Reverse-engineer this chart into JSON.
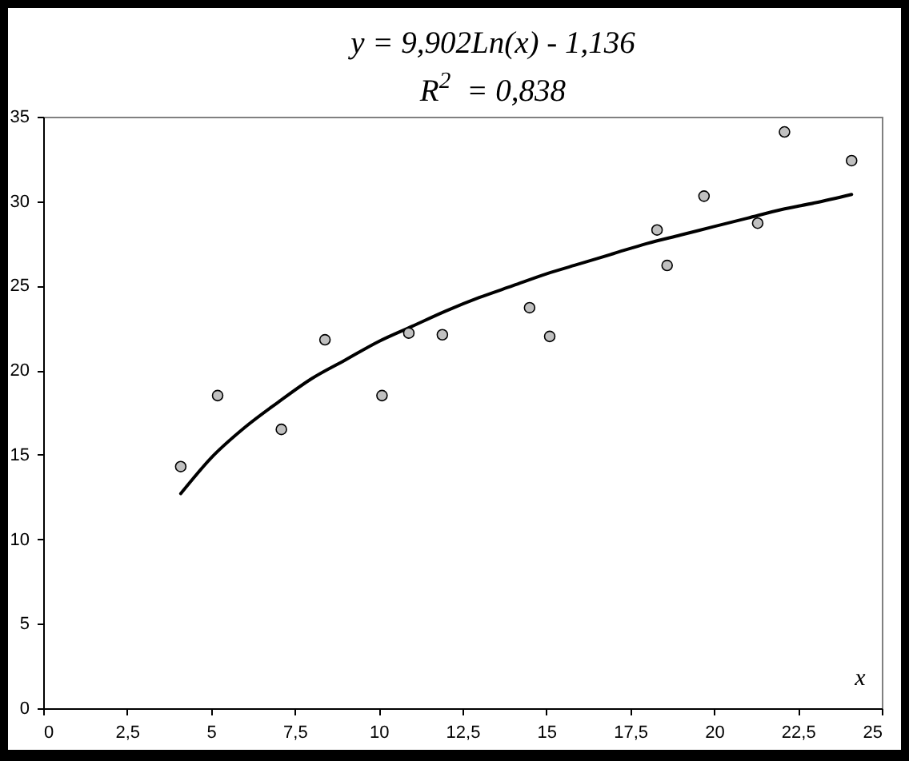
{
  "chart_data": {
    "type": "scatter",
    "annotations": [
      "y = 9,902Ln(x) - 1,136",
      "R$^{2}$ = 0,838"
    ],
    "xlabel": "x",
    "xlim": [
      0,
      25
    ],
    "ylim": [
      0,
      35
    ],
    "xticks": [
      0,
      {
        "value": 2.5,
        "label": "2,5"
      },
      5,
      {
        "value": 7.5,
        "label": "7,5"
      },
      10,
      {
        "value": 12.5,
        "label": "12,5"
      },
      15,
      {
        "value": 17.5,
        "label": "17,5"
      },
      20,
      {
        "value": 22.5,
        "label": "22,5"
      },
      25
    ],
    "yticks": [
      0,
      5,
      10,
      15,
      20,
      25,
      30,
      35
    ],
    "marker": "circle",
    "series": [
      {
        "color": "#c0c0c0",
        "x": [
          4.1,
          5.2,
          7.1,
          8.4,
          10.1,
          10.9,
          11.9,
          14.5,
          15.1,
          18.3,
          18.6,
          19.7,
          21.3,
          22.1,
          24.1
        ],
        "values": [
          14.3,
          18.5,
          16.5,
          21.8,
          18.5,
          22.2,
          22.1,
          23.7,
          22.0,
          28.3,
          26.2,
          30.3,
          28.7,
          34.1,
          32.4
        ]
      },
      {
        "type": "line",
        "marker": "none",
        "color": "#000000",
        "x": [
          4.1,
          5,
          6,
          7,
          8,
          9,
          10,
          11,
          12,
          13,
          14,
          15,
          16,
          17,
          18,
          19,
          20,
          21,
          22,
          23,
          24.1
        ],
        "values": [
          12.7,
          14.8,
          16.6,
          18.1,
          19.5,
          20.6,
          21.7,
          22.6,
          23.5,
          24.3,
          25.0,
          25.7,
          26.3,
          26.9,
          27.5,
          28.0,
          28.5,
          29.0,
          29.5,
          29.9,
          30.4
        ]
      }
    ]
  }
}
